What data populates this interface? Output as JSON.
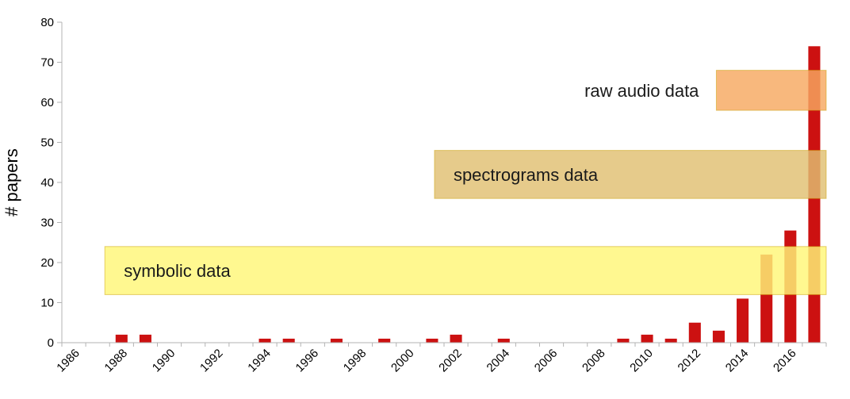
{
  "chart_data": {
    "type": "bar",
    "title": "",
    "xlabel": "",
    "ylabel": "# papers",
    "ylim": [
      0,
      80
    ],
    "yticks": [
      0,
      10,
      20,
      30,
      40,
      50,
      60,
      70,
      80
    ],
    "xlim": [
      1986,
      2017
    ],
    "xticks": [
      "1986",
      "1988",
      "1990",
      "1992",
      "1994",
      "1996",
      "1998",
      "2000",
      "2002",
      "2004",
      "2006",
      "2008",
      "2010",
      "2012",
      "2014",
      "2016"
    ],
    "grid": false,
    "legend": "none",
    "series": [
      {
        "x": [
          1988,
          1989,
          1994,
          1995,
          1997,
          1999,
          2001,
          2002,
          2004,
          2009,
          2010,
          2011,
          2012,
          2013,
          2014,
          2015,
          2016,
          2017
        ],
        "values": [
          2,
          2,
          1,
          1,
          1,
          1,
          1,
          2,
          1,
          1,
          2,
          1,
          5,
          3,
          11,
          22,
          28,
          74
        ],
        "color": "#cc1111"
      }
    ],
    "annotations": [
      {
        "label": "symbolic data",
        "x_start": 1987.8,
        "x_end": 2017.0,
        "y_low": 12,
        "y_high": 24,
        "color": "#fff778"
      },
      {
        "label": "spectrograms data",
        "x_start": 2001.6,
        "x_end": 2017.0,
        "y_low": 36,
        "y_high": 48,
        "color": "#e0c072"
      },
      {
        "label": "raw audio data",
        "x_start": 2013.4,
        "x_end": 2017.0,
        "y_low": 58,
        "y_high": 68,
        "color": "#f7a860"
      }
    ]
  }
}
